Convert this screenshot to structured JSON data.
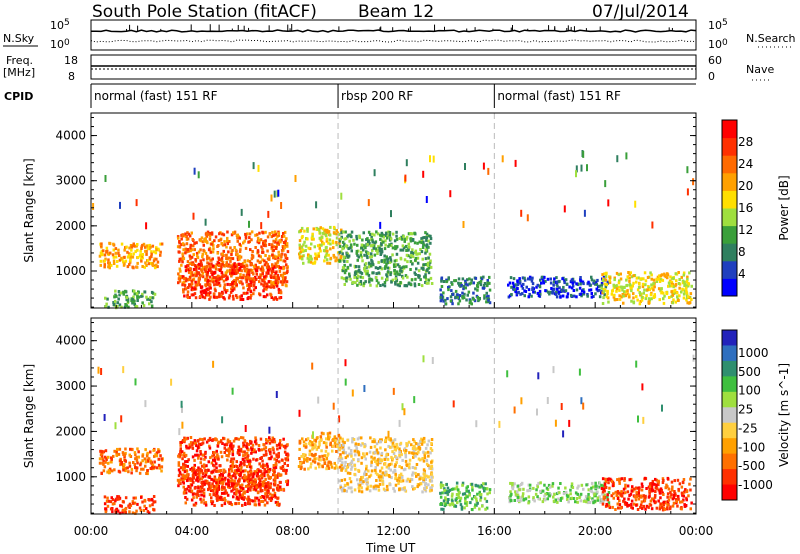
{
  "header": {
    "station": "South Pole Station (fitACF)",
    "beam": "Beam 12",
    "date": "07/Jul/2014"
  },
  "side_labels": {
    "nsky": "N.Sky",
    "freq": "Freq.",
    "mhz": "[MHz]",
    "cpid": "CPID",
    "nsearch": "N.Search",
    "nave": "Nave"
  },
  "small_axes": {
    "nsky_ticks": [
      "10^5",
      "10^0"
    ],
    "nsearch_ticks": [
      "10^5",
      "10^0"
    ],
    "freq_ticks": [
      "18",
      "8"
    ],
    "nave_ticks": [
      "60",
      "0"
    ]
  },
  "cpid_segments": [
    {
      "label": "normal (fast) 151 RF",
      "start_hour": 0,
      "end_hour": 9.8
    },
    {
      "label": "rbsp 200 RF",
      "start_hour": 9.8,
      "end_hour": 16.0
    },
    {
      "label": "normal (fast) 151 RF",
      "start_hour": 16.0,
      "end_hour": 24
    }
  ],
  "chart_data": [
    {
      "type": "heatmap",
      "quantity": "Power",
      "ylabel": "Slant Range [km]",
      "xlabel": "Time UT",
      "xlim_hours": [
        0,
        24
      ],
      "ylim_km": [
        180,
        4500
      ],
      "y_ticks": [
        1000,
        2000,
        3000,
        4000
      ],
      "x_tick_labels": [
        "00:00",
        "04:00",
        "08:00",
        "12:00",
        "16:00",
        "20:00",
        "00:00"
      ],
      "colorbar_label": "Power [dB]",
      "colorbar_ticks": [
        4,
        8,
        12,
        16,
        20,
        24,
        28
      ],
      "colorbar_colors": [
        "#0000ff",
        "#1f3fbf",
        "#2f7f5f",
        "#3a9f3a",
        "#9fdf3f",
        "#ffdf00",
        "#ffa000",
        "#ff6a00",
        "#ff3000",
        "#ff0000"
      ]
    },
    {
      "type": "heatmap",
      "quantity": "Velocity",
      "ylabel": "Slant Range [km]",
      "xlabel": "Time UT",
      "xlim_hours": [
        0,
        24
      ],
      "ylim_km": [
        180,
        4500
      ],
      "y_ticks": [
        1000,
        2000,
        3000,
        4000
      ],
      "x_tick_labels": [
        "00:00",
        "04:00",
        "08:00",
        "12:00",
        "16:00",
        "20:00",
        "00:00"
      ],
      "colorbar_label": "Velocity [m s^-1]",
      "colorbar_ticks": [
        "1000",
        "500",
        "100",
        "25",
        "-25",
        "-100",
        "-500",
        "-1000"
      ],
      "colorbar_colors": [
        "#2222bb",
        "#2f6fbf",
        "#2f8f6f",
        "#3fbf3f",
        "#9fdf3f",
        "#c8c8c8",
        "#ffcf3f",
        "#ffa000",
        "#ff7000",
        "#ff3000",
        "#ff0000"
      ]
    }
  ],
  "scatter_clusters": [
    {
      "t0": 0.3,
      "t1": 2.8,
      "r0": 1100,
      "r1": 1650,
      "power_level": 6,
      "vel_level": 8
    },
    {
      "t0": 0.5,
      "t1": 2.5,
      "r0": 220,
      "r1": 600,
      "power_level": 3,
      "vel_level": 9
    },
    {
      "t0": 3.4,
      "t1": 7.8,
      "r0": 700,
      "r1": 1900,
      "power_level": 7,
      "vel_level": 9
    },
    {
      "t0": 3.6,
      "t1": 7.5,
      "r0": 400,
      "r1": 1200,
      "power_level": 8,
      "vel_level": 9
    },
    {
      "t0": 8.2,
      "t1": 9.9,
      "r0": 1200,
      "r1": 2000,
      "power_level": 5,
      "vel_level": 7
    },
    {
      "t0": 9.8,
      "t1": 13.5,
      "r0": 700,
      "r1": 1900,
      "power_level": 3,
      "vel_level": 6
    },
    {
      "t0": 13.8,
      "t1": 15.8,
      "r0": 300,
      "r1": 900,
      "power_level": 2,
      "vel_level": 3
    },
    {
      "t0": 16.5,
      "t1": 20.5,
      "r0": 450,
      "r1": 900,
      "power_level": 1,
      "vel_level": 4
    },
    {
      "t0": 20.2,
      "t1": 23.8,
      "r0": 300,
      "r1": 1000,
      "power_level": 5,
      "vel_level": 9
    }
  ],
  "x_axis_label": "Time UT"
}
